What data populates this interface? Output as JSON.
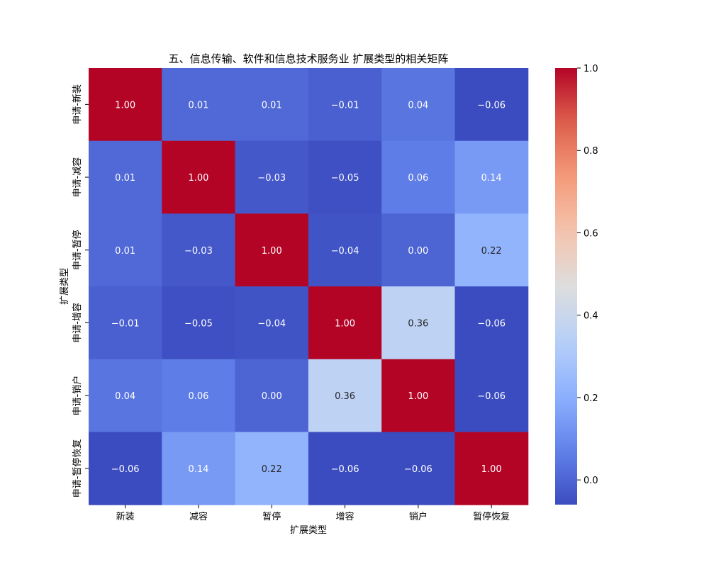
{
  "chart_data": {
    "type": "heatmap",
    "title": "五、信息传输、软件和信息技术服务业 扩展类型的相关矩阵",
    "xlabel": "扩展类型",
    "ylabel": "扩展类型",
    "x_categories": [
      "新装",
      "减容",
      "暂停",
      "增容",
      "销户",
      "暂停恢复"
    ],
    "y_categories": [
      "申请-新装",
      "申请-减容",
      "申请-暂停",
      "申请-增容",
      "申请-销户",
      "申请-暂停恢复"
    ],
    "values": [
      [
        1.0,
        0.01,
        0.01,
        -0.01,
        0.04,
        -0.06
      ],
      [
        0.01,
        1.0,
        -0.03,
        -0.05,
        0.06,
        0.14
      ],
      [
        0.01,
        -0.03,
        1.0,
        -0.04,
        0.0,
        0.22
      ],
      [
        -0.01,
        -0.05,
        -0.04,
        1.0,
        0.36,
        -0.06
      ],
      [
        0.04,
        0.06,
        0.0,
        0.36,
        1.0,
        -0.06
      ],
      [
        -0.06,
        0.14,
        0.22,
        -0.06,
        -0.06,
        1.0
      ]
    ],
    "colormap": "coolwarm",
    "vmin": -0.06,
    "vmax": 1.0,
    "colorbar_ticks": [
      0.0,
      0.2,
      0.4,
      0.6,
      0.8,
      1.0
    ],
    "value_format": "0.00"
  }
}
